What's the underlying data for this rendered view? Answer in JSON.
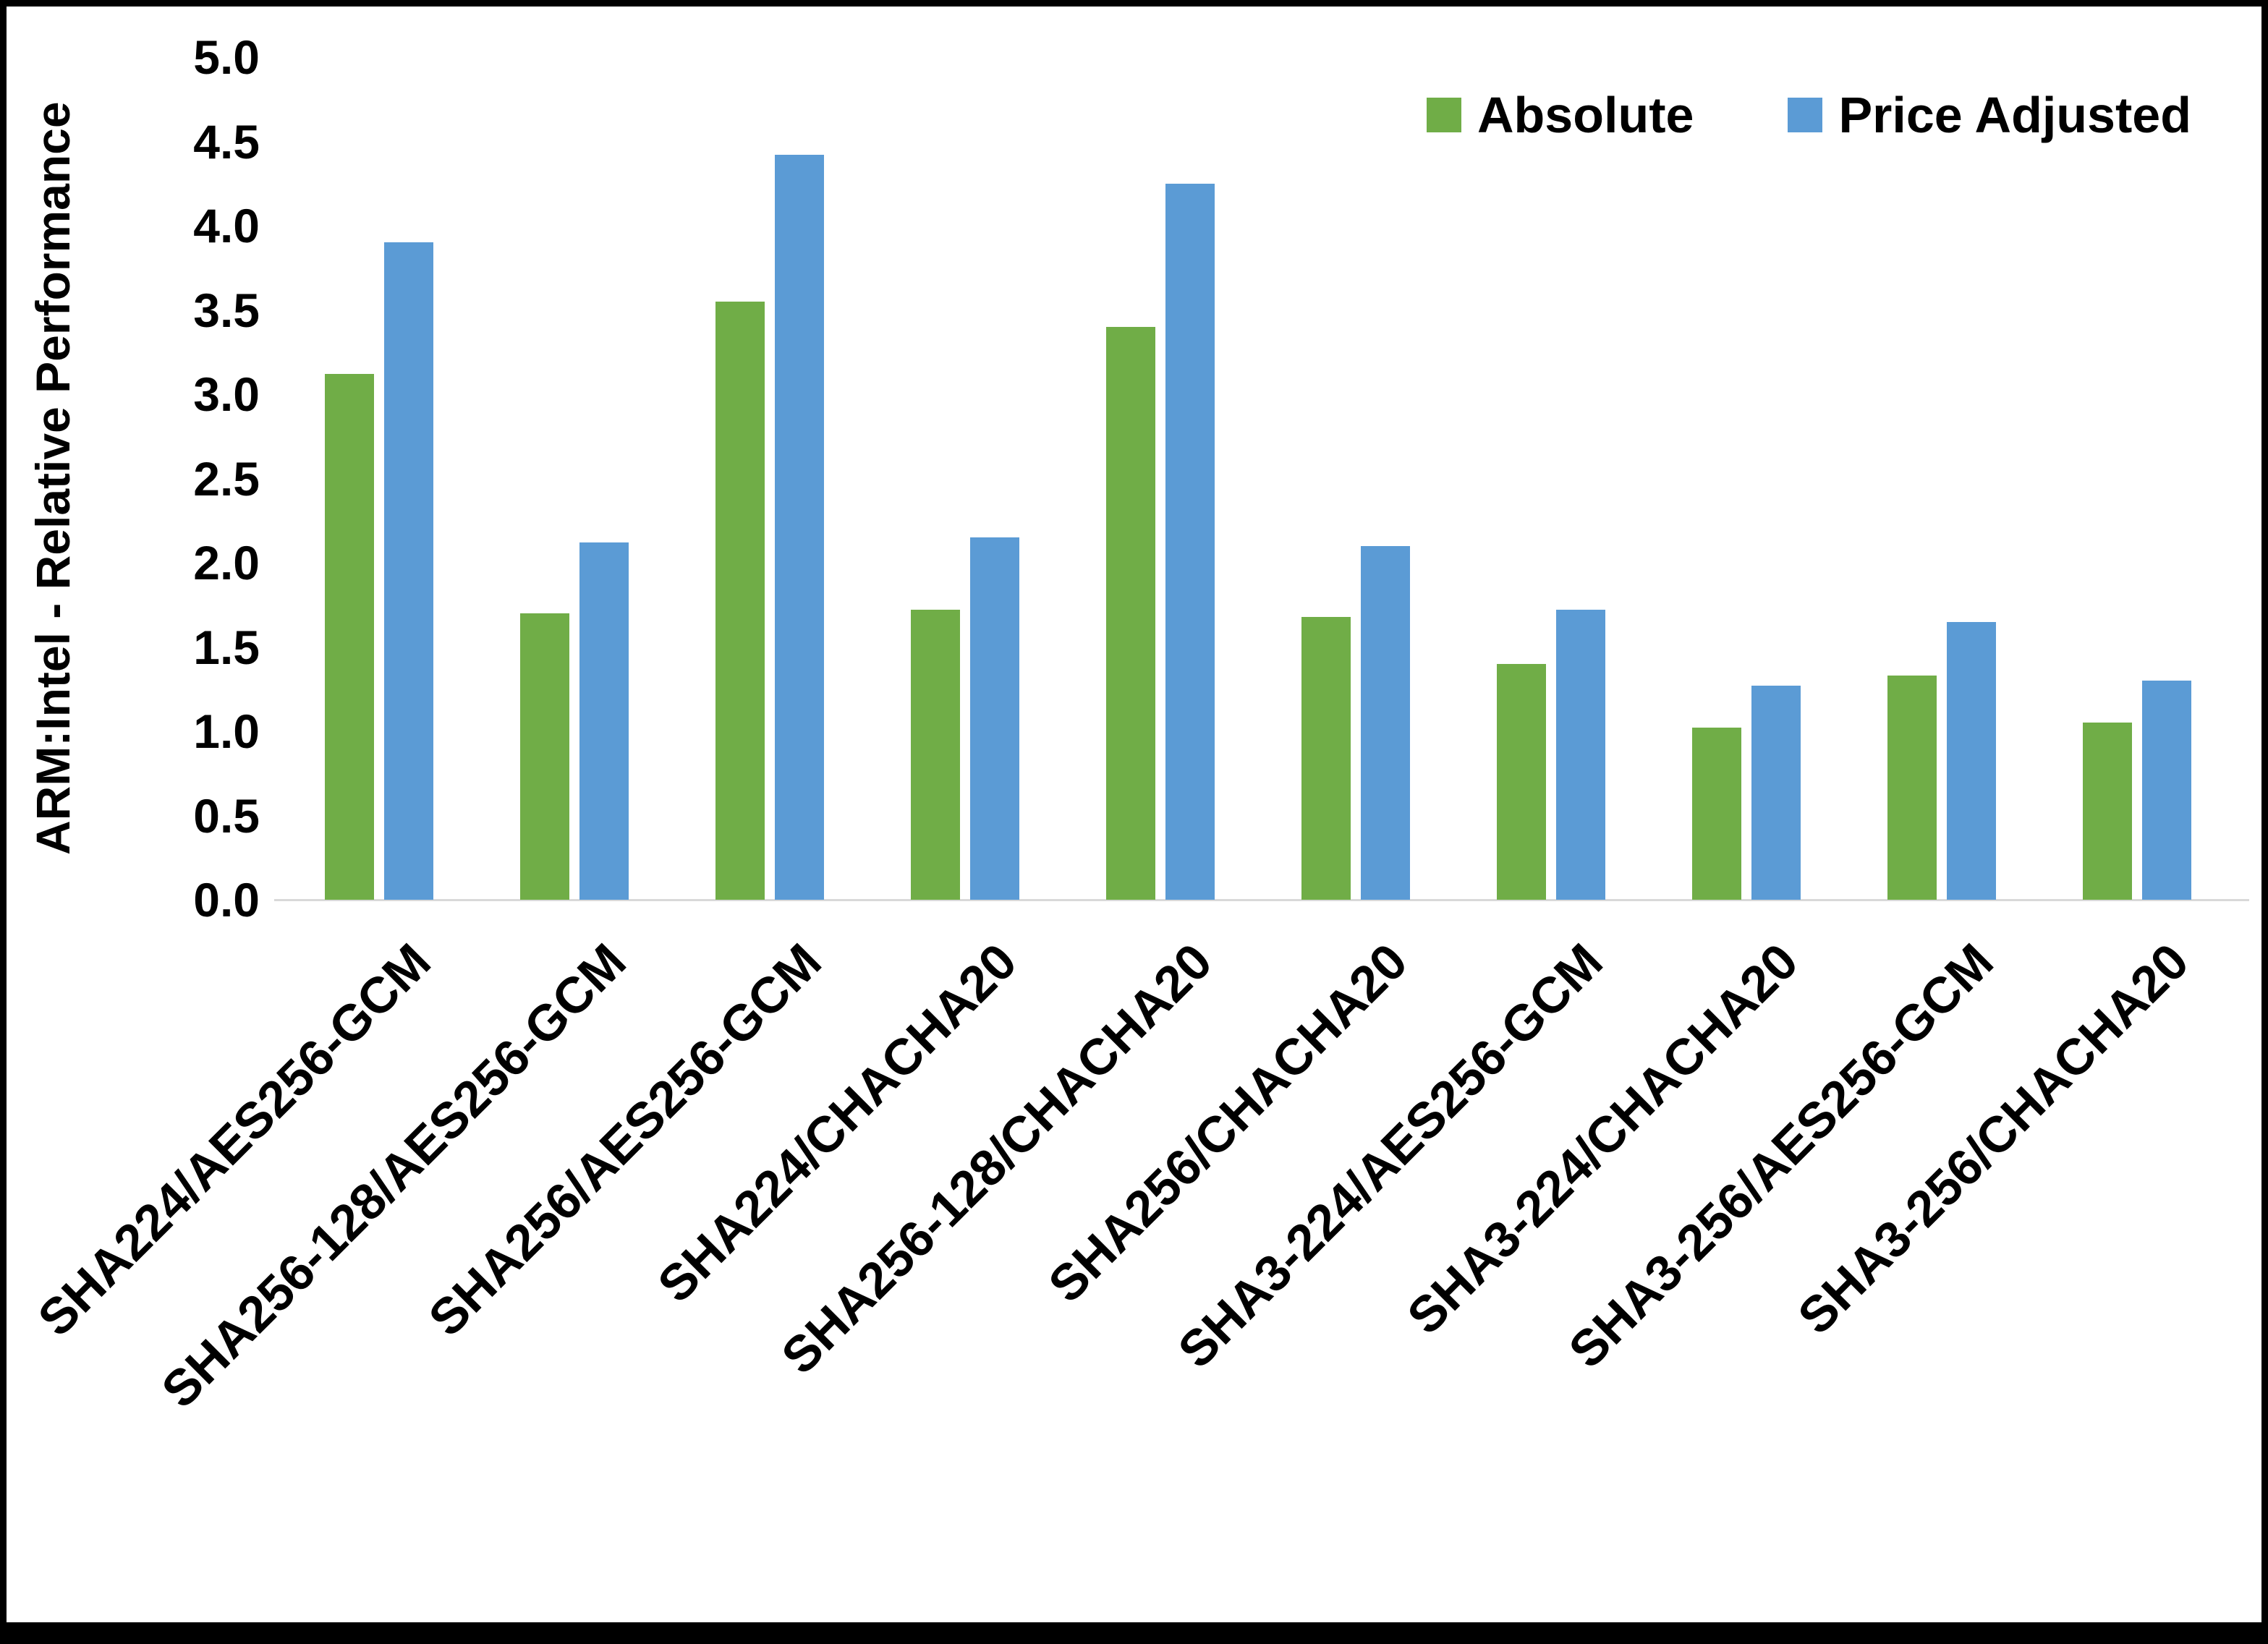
{
  "chart_data": {
    "type": "bar",
    "title": "",
    "xlabel": "",
    "ylabel": "ARM:Intel - Relative Performance",
    "ylim": [
      0,
      5
    ],
    "ytick_step": 0.5,
    "yticks": [
      "0.0",
      "0.5",
      "1.0",
      "1.5",
      "2.0",
      "2.5",
      "3.0",
      "3.5",
      "4.0",
      "4.5",
      "5.0"
    ],
    "grid": false,
    "legend_position": "top-right",
    "categories": [
      "SHA224/AES256-GCM",
      "SHA256-128/AES256-GCM",
      "SHA256/AES256-GCM",
      "SHA224/CHACHA20",
      "SHA256-128/CHACHA20",
      "SHA256/CHACHA20",
      "SHA3-224/AES256-GCM",
      "SHA3-224/CHACHA20",
      "SHA3-256/AES256-GCM",
      "SHA3-256/CHACHA20"
    ],
    "series": [
      {
        "name": "Absolute",
        "color": "#70AD47",
        "values": [
          3.12,
          1.7,
          3.55,
          1.72,
          3.4,
          1.68,
          1.4,
          1.02,
          1.33,
          1.05
        ]
      },
      {
        "name": "Price Adjusted",
        "color": "#5B9BD5",
        "values": [
          3.9,
          2.12,
          4.42,
          2.15,
          4.25,
          2.1,
          1.72,
          1.27,
          1.65,
          1.3
        ]
      }
    ]
  },
  "colors": {
    "absolute": "#70AD47",
    "price_adjusted": "#5B9BD5",
    "axis_line": "#d9d9d9",
    "text": "#000000",
    "border": "#000000",
    "background": "#ffffff"
  }
}
